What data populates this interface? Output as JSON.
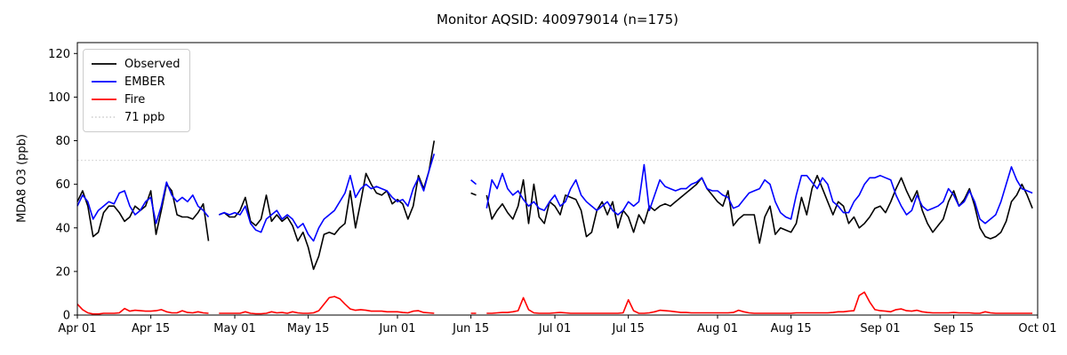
{
  "title": "Monitor AQSID: 400979014 (n=175)",
  "chart_data": {
    "type": "line",
    "title": "Monitor AQSID: 400979014 (n=175)",
    "xlabel": "",
    "ylabel": "MDA8 O3 (ppb)",
    "ylim": [
      0,
      125
    ],
    "yticks": [
      0,
      20,
      40,
      60,
      80,
      100,
      120
    ],
    "grid": false,
    "legend_position": "upper left",
    "x_unit": "days since Apr 01",
    "x_range_days": 183,
    "xticks": [
      {
        "day": 0,
        "label": "Apr 01"
      },
      {
        "day": 14,
        "label": "Apr 15"
      },
      {
        "day": 30,
        "label": "May 01"
      },
      {
        "day": 44,
        "label": "May 15"
      },
      {
        "day": 61,
        "label": "Jun 01"
      },
      {
        "day": 75,
        "label": "Jun 15"
      },
      {
        "day": 91,
        "label": "Jul 01"
      },
      {
        "day": 105,
        "label": "Jul 15"
      },
      {
        "day": 122,
        "label": "Aug 01"
      },
      {
        "day": 136,
        "label": "Aug 15"
      },
      {
        "day": 153,
        "label": "Sep 01"
      },
      {
        "day": 167,
        "label": "Sep 15"
      },
      {
        "day": 183,
        "label": "Oct 01"
      }
    ],
    "threshold": {
      "value": 71,
      "label": "71 ppb",
      "color": "#d3d3d3",
      "style": "dotted"
    },
    "series": [
      {
        "name": "Observed",
        "color": "#000000",
        "values": [
          52,
          57,
          50,
          36,
          38,
          47,
          50,
          50,
          47,
          43,
          45,
          50,
          48,
          50,
          57,
          37,
          48,
          60,
          57,
          46,
          45,
          45,
          44,
          47,
          51,
          34,
          null,
          46,
          47,
          45,
          45,
          48,
          54,
          43,
          41,
          44,
          55,
          43,
          46,
          43,
          45,
          41,
          34,
          38,
          31,
          21,
          27,
          37,
          38,
          37,
          40,
          42,
          57,
          40,
          52,
          65,
          60,
          56,
          55,
          57,
          51,
          53,
          51,
          44,
          50,
          64,
          58,
          66,
          80,
          null,
          null,
          null,
          null,
          null,
          null,
          56,
          55,
          null,
          55,
          44,
          48,
          51,
          47,
          44,
          50,
          62,
          42,
          60,
          45,
          42,
          52,
          50,
          46,
          55,
          54,
          53,
          48,
          36,
          38,
          48,
          52,
          46,
          52,
          40,
          48,
          45,
          38,
          46,
          42,
          50,
          48,
          50,
          51,
          50,
          52,
          54,
          56,
          58,
          60,
          63,
          58,
          55,
          52,
          50,
          57,
          41,
          44,
          46,
          46,
          46,
          33,
          45,
          50,
          37,
          40,
          39,
          38,
          42,
          54,
          46,
          58,
          64,
          58,
          52,
          46,
          52,
          50,
          42,
          45,
          40,
          42,
          45,
          49,
          50,
          47,
          52,
          58,
          63,
          57,
          52,
          57,
          48,
          42,
          38,
          41,
          44,
          52,
          57,
          50,
          53,
          58,
          50,
          40,
          36,
          35,
          36,
          38,
          43,
          52,
          55,
          60,
          55,
          49
        ]
      },
      {
        "name": "EMBER",
        "color": "#0000ff",
        "values": [
          50,
          55,
          52,
          44,
          48,
          50,
          52,
          51,
          56,
          57,
          50,
          46,
          48,
          52,
          54,
          42,
          50,
          61,
          55,
          52,
          54,
          52,
          55,
          50,
          48,
          45,
          null,
          46,
          47,
          46,
          47,
          46,
          50,
          42,
          39,
          38,
          44,
          46,
          48,
          44,
          46,
          44,
          40,
          42,
          37,
          34,
          40,
          44,
          46,
          48,
          52,
          56,
          64,
          54,
          58,
          60,
          58,
          59,
          58,
          57,
          54,
          52,
          53,
          50,
          58,
          63,
          57,
          66,
          74,
          null,
          null,
          null,
          null,
          null,
          null,
          62,
          60,
          null,
          49,
          62,
          58,
          65,
          58,
          55,
          57,
          53,
          50,
          52,
          49,
          48,
          52,
          55,
          50,
          52,
          58,
          62,
          55,
          52,
          50,
          48,
          50,
          52,
          48,
          46,
          48,
          52,
          50,
          52,
          69,
          48,
          55,
          62,
          59,
          58,
          57,
          58,
          58,
          60,
          61,
          63,
          58,
          57,
          57,
          55,
          54,
          49,
          50,
          53,
          56,
          57,
          58,
          62,
          60,
          52,
          47,
          45,
          44,
          55,
          64,
          64,
          61,
          58,
          63,
          60,
          52,
          50,
          47,
          47,
          52,
          55,
          60,
          63,
          63,
          64,
          63,
          62,
          55,
          50,
          46,
          48,
          55,
          50,
          48,
          49,
          50,
          52,
          58,
          55,
          50,
          52,
          57,
          52,
          44,
          42,
          44,
          46,
          52,
          60,
          68,
          62,
          58,
          57,
          56
        ]
      },
      {
        "name": "Fire",
        "color": "#ff0000",
        "values": [
          5,
          2.5,
          1,
          0.5,
          0.5,
          0.8,
          0.8,
          0.8,
          1,
          3,
          1.8,
          2.2,
          2,
          1.8,
          1.8,
          2,
          2.5,
          1.5,
          1,
          1,
          2,
          1.2,
          1,
          1.5,
          1,
          0.8,
          null,
          0.8,
          0.8,
          0.8,
          0.8,
          0.8,
          1.5,
          0.8,
          0.6,
          0.6,
          0.8,
          1.5,
          1,
          1.2,
          0.8,
          1.5,
          1,
          0.8,
          0.8,
          1,
          2,
          5,
          8,
          8.5,
          7.5,
          5,
          2.8,
          2.2,
          2.5,
          2.2,
          1.8,
          1.8,
          1.8,
          1.5,
          1.5,
          1.5,
          1.2,
          1,
          1.8,
          2,
          1.2,
          1,
          0.8,
          null,
          null,
          null,
          null,
          null,
          null,
          0.8,
          0.8,
          null,
          0.8,
          0.8,
          1,
          1.2,
          1.2,
          1.5,
          2,
          8,
          2.5,
          1,
          0.8,
          0.8,
          0.8,
          1,
          1.2,
          1,
          0.8,
          0.8,
          0.8,
          0.8,
          0.8,
          0.8,
          0.8,
          0.8,
          0.8,
          0.8,
          1,
          7,
          2,
          0.8,
          0.8,
          1,
          1.5,
          2.2,
          2,
          1.8,
          1.5,
          1.2,
          1.2,
          1,
          1,
          1,
          1,
          1,
          1,
          1,
          1,
          1.2,
          2.2,
          1.5,
          1,
          0.8,
          0.8,
          0.8,
          0.8,
          0.8,
          0.8,
          0.8,
          0.8,
          1,
          1,
          1,
          1,
          1,
          1,
          1,
          1.2,
          1.5,
          1.5,
          1.8,
          2,
          9,
          10.5,
          6,
          2.5,
          2,
          1.8,
          1.5,
          2.5,
          2.8,
          2,
          1.8,
          2.2,
          1.5,
          1.2,
          1,
          1,
          1,
          1,
          1.2,
          1,
          1,
          1,
          0.8,
          0.8,
          1.5,
          1,
          0.8,
          0.8,
          0.8,
          0.8,
          0.8,
          0.8,
          0.8,
          0.8
        ]
      }
    ]
  },
  "colors": {
    "background": "#ffffff",
    "axes": "#000000",
    "legend_border": "#cccccc",
    "threshold": "#d3d3d3"
  }
}
